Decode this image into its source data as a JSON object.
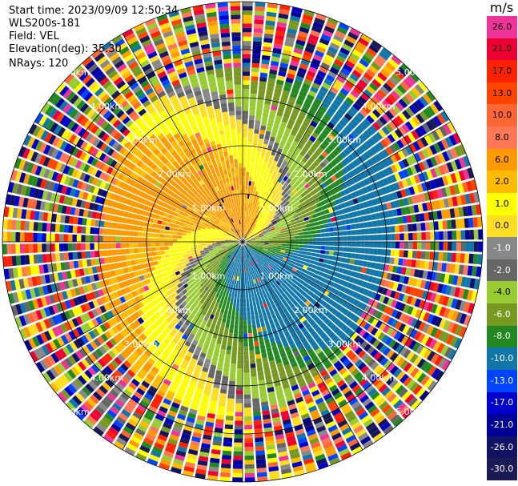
{
  "header": {
    "start_time": "Start time: 2023/09/09 12:50:34",
    "instrument": "WLS200s-181",
    "field": "Field: VEL",
    "elevation": "Elevation(deg): 35.30",
    "nrays": "NRays: 120"
  },
  "colorbar": {
    "title": "m/s",
    "ticks": [
      "26.0",
      "21.0",
      "17.0",
      "13.0",
      "10.0",
      "8.0",
      "6.0",
      "2.0",
      "1.0",
      "0.0",
      "-1.0",
      "-2.0",
      "-4.0",
      "-6.0",
      "-8.0",
      "-10.0",
      "-13.0",
      "-17.0",
      "-21.0",
      "-26.0",
      "-30.0"
    ],
    "colors": [
      "#ee3399",
      "#ee0033",
      "#ff2200",
      "#ff4400",
      "#ff6633",
      "#ff7755",
      "#ff9900",
      "#ffbb00",
      "#ffff00",
      "#ffdd22",
      "#888888",
      "#666666",
      "#99cc33",
      "#779922",
      "#228822",
      "#1177aa",
      "#0044ff",
      "#0000cc",
      "#000099",
      "#111166",
      "#1a1a55"
    ]
  },
  "chart_data": {
    "type": "ppi",
    "field": "VEL",
    "units": "m/s",
    "nrays": 120,
    "range_ring_labels": [
      "1.00km",
      "2.00km",
      "3.00km",
      "4.00km",
      "5.00km"
    ],
    "ring_spacing_km": 1.0,
    "max_range_km": 5.0,
    "value_range": [
      -30.0,
      26.0
    ]
  }
}
